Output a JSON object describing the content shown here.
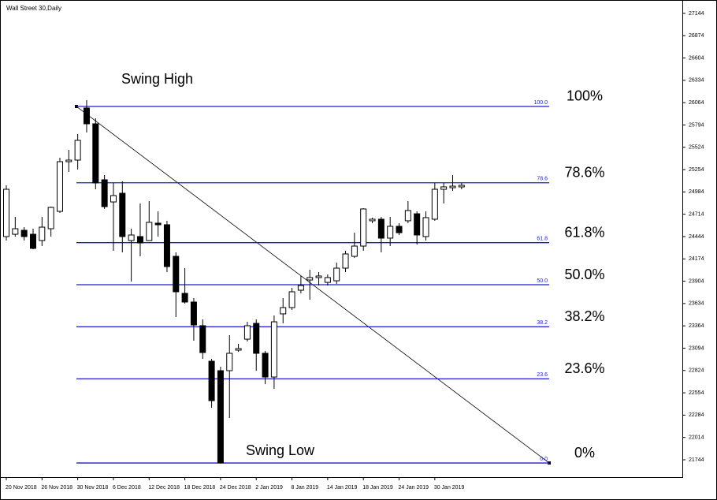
{
  "chart_data": {
    "type": "candlestick",
    "title": "Wall Street 30,Daily",
    "categories": [
      "20 Nov 2018",
      null,
      null,
      null,
      "26 Nov 2018",
      null,
      null,
      null,
      "30 Nov 2018",
      null,
      null,
      null,
      "6 Dec 2018",
      null,
      null,
      null,
      "12 Dec 2018",
      null,
      null,
      null,
      "18 Dec 2018",
      null,
      null,
      null,
      "24 Dec 2018",
      null,
      null,
      null,
      "2 Jan 2019",
      null,
      null,
      null,
      "8 Jan 2019",
      null,
      null,
      null,
      "14 Jan 2019",
      null,
      null,
      null,
      "18 Jan 2019",
      null,
      null,
      null,
      "24 Jan 2019",
      null,
      null,
      null,
      "30 Jan 2019",
      null,
      null,
      null
    ],
    "open": [
      24444,
      24472,
      24520,
      24472,
      24396,
      24539,
      24749,
      25350,
      25369,
      25999,
      25808,
      25131,
      24863,
      24968,
      24396,
      24444,
      24396,
      24606,
      24587,
      24205,
      23757,
      23652,
      23366,
      22936,
      22822,
      22822,
      23070,
      23203,
      23394,
      23032,
      22745,
      23509,
      23585,
      23795,
      23919,
      23948,
      23890,
      23909,
      24062,
      24205,
      24329,
      24635,
      24654,
      24425,
      24568,
      24635,
      24720,
      24444,
      24654,
      25016,
      25035,
      25045
    ],
    "high": [
      25064,
      24682,
      24558,
      24539,
      24682,
      24806,
      25398,
      25493,
      25684,
      26094,
      25875,
      25188,
      25093,
      25112,
      24539,
      24844,
      24873,
      24749,
      24635,
      24253,
      24062,
      23699,
      23442,
      22965,
      22869,
      23251,
      23146,
      23413,
      23442,
      23060,
      23490,
      23699,
      23824,
      23967,
      24043,
      24014,
      23986,
      24129,
      24272,
      24491,
      24787,
      24673,
      24682,
      24682,
      24606,
      24873,
      24749,
      24749,
      25093,
      25093,
      25188,
      25093
    ],
    "low": [
      24396,
      24444,
      24396,
      24291,
      24329,
      24444,
      24730,
      25226,
      25255,
      25703,
      25016,
      24778,
      24272,
      24253,
      23900,
      24205,
      24396,
      24444,
      24014,
      23471,
      23633,
      23184,
      22965,
      22373,
      21705,
      22249,
      23051,
      23175,
      22822,
      22659,
      22602,
      23394,
      23556,
      23757,
      23680,
      23852,
      23852,
      23871,
      24014,
      24186,
      24272,
      24606,
      24253,
      24329,
      24463,
      24606,
      24348,
      24396,
      24635,
      24844,
      24997,
      25016
    ],
    "close": [
      25016,
      24539,
      24444,
      24301,
      24558,
      24797,
      25350,
      25369,
      25608,
      25808,
      25093,
      24806,
      24940,
      24444,
      24463,
      24367,
      24616,
      24587,
      24081,
      23776,
      23652,
      23375,
      23041,
      22459,
      21705,
      23032,
      23089,
      23366,
      23032,
      22745,
      23413,
      23585,
      23776,
      23852,
      23948,
      23967,
      23948,
      24062,
      24234,
      24329,
      24778,
      24654,
      24425,
      24568,
      24491,
      24759,
      24463,
      24673,
      25016,
      25045,
      25054,
      25064
    ],
    "ylim": [
      21534,
      27258
    ],
    "yticks": [
      27144,
      26874,
      26604,
      26334,
      26064,
      25794,
      25524,
      25254,
      24984,
      24714,
      24444,
      24174,
      23904,
      23634,
      23364,
      23094,
      22824,
      22554,
      22284,
      22014,
      21744
    ],
    "fib": {
      "high": 26018,
      "low": 21705,
      "color": "#1c1ccf",
      "levels": [
        {
          "value": 100,
          "label": "100.0"
        },
        78.6,
        61.8,
        {
          "value": 50,
          "label": "50.0"
        },
        38.2,
        23.6,
        {
          "value": 0,
          "label": "0.0"
        }
      ],
      "level_texts": [
        "100%",
        "78.6%",
        "61.8%",
        "50.0%",
        "38.2%",
        "23.6%",
        "0%"
      ]
    },
    "annotations": [
      "Swing High",
      "Swing Low"
    ]
  }
}
